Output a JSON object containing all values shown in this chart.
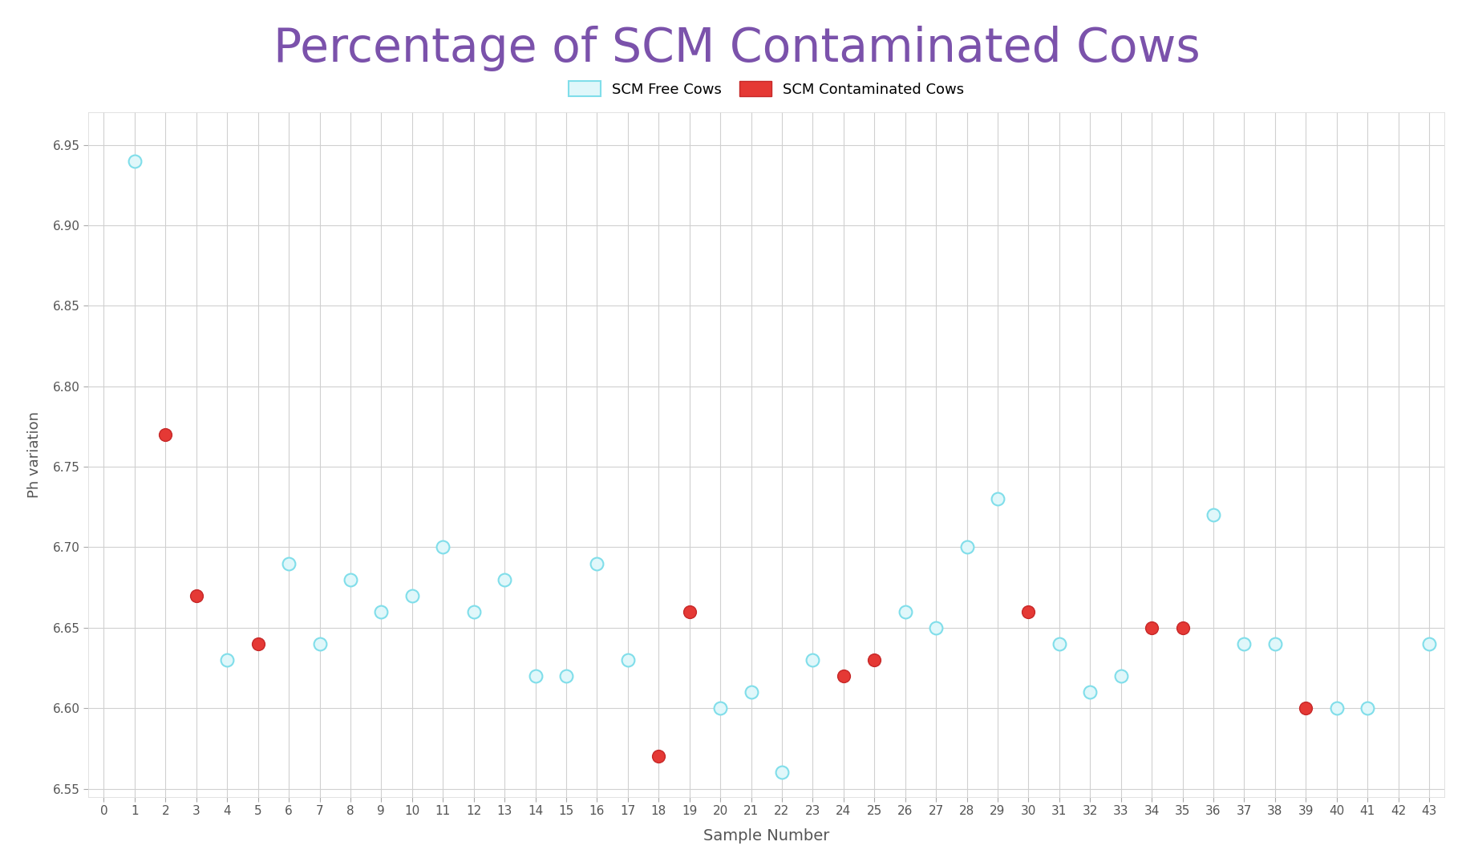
{
  "title": "Percentage of SCM Contaminated Cows",
  "title_color": "#7B52AB",
  "xlabel": "Sample Number",
  "ylabel": "Ph variation",
  "background_color": "#ffffff",
  "grid_color": "#d0d0d0",
  "ylim": [
    6.545,
    6.97
  ],
  "xlim": [
    -0.5,
    43.5
  ],
  "yticks": [
    6.55,
    6.6,
    6.65,
    6.7,
    6.75,
    6.8,
    6.85,
    6.9,
    6.95
  ],
  "xticks": [
    0,
    1,
    2,
    3,
    4,
    5,
    6,
    7,
    8,
    9,
    10,
    11,
    12,
    13,
    14,
    15,
    16,
    17,
    18,
    19,
    20,
    21,
    22,
    23,
    24,
    25,
    26,
    27,
    28,
    29,
    30,
    31,
    32,
    33,
    34,
    35,
    36,
    37,
    38,
    39,
    40,
    41,
    42,
    43
  ],
  "free_cows": {
    "x": [
      1,
      4,
      6,
      7,
      8,
      9,
      10,
      11,
      12,
      13,
      14,
      15,
      16,
      17,
      20,
      21,
      22,
      23,
      26,
      27,
      28,
      29,
      31,
      32,
      33,
      36,
      37,
      38,
      40,
      41,
      43
    ],
    "y": [
      6.94,
      6.63,
      6.69,
      6.64,
      6.68,
      6.66,
      6.67,
      6.7,
      6.66,
      6.68,
      6.62,
      6.62,
      6.69,
      6.63,
      6.6,
      6.61,
      6.56,
      6.63,
      6.66,
      6.65,
      6.7,
      6.73,
      6.64,
      6.61,
      6.62,
      6.72,
      6.64,
      6.64,
      6.6,
      6.6,
      6.64
    ],
    "color": "#E0F7FA",
    "edge_color": "#80DEEA",
    "marker_size": 130
  },
  "contaminated_cows": {
    "x": [
      2,
      3,
      5,
      18,
      19,
      24,
      25,
      30,
      34,
      35,
      39
    ],
    "y": [
      6.77,
      6.67,
      6.64,
      6.57,
      6.66,
      6.62,
      6.63,
      6.66,
      6.65,
      6.65,
      6.6
    ],
    "color": "#E53935",
    "edge_color": "#C62828",
    "marker_size": 130
  },
  "legend_free_color": "#E0F7FA",
  "legend_free_edge": "#80DEEA",
  "legend_cont_color": "#E53935",
  "legend_cont_edge": "#C62828",
  "legend_free_label": "SCM Free Cows",
  "legend_cont_label": "SCM Contaminated Cows"
}
